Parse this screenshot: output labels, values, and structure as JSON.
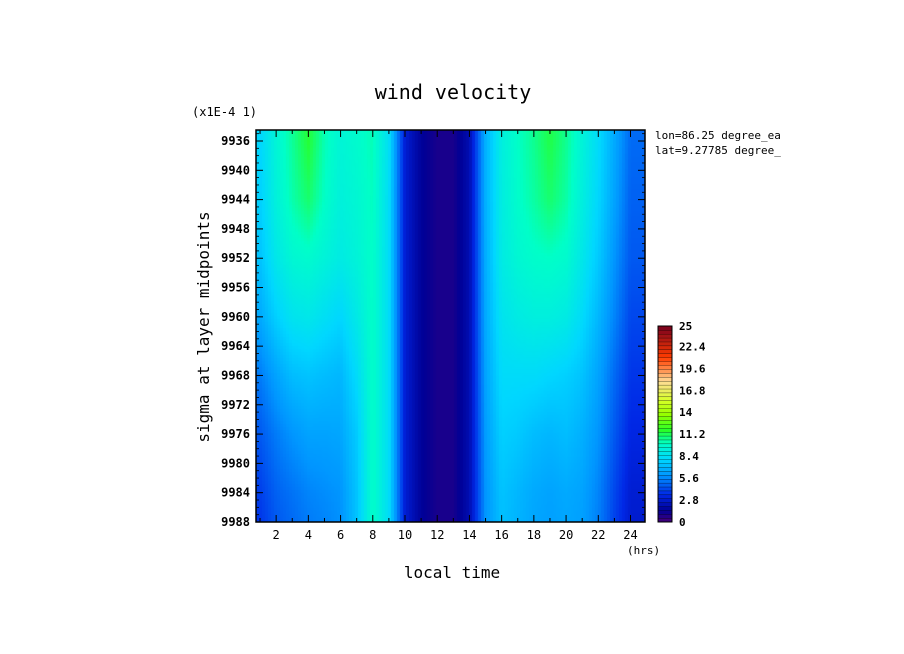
{
  "chart_data": {
    "type": "heatmap",
    "title": "wind velocity",
    "scale_note": "(x1E-4 1)",
    "xlabel": "local time",
    "x_unit": "(hrs)",
    "ylabel": "sigma at layer midpoints",
    "annotations": [
      "lon=86.25 degree_ea",
      "lat=9.27785 degree_"
    ],
    "x_range": [
      0.75,
      24.9
    ],
    "y_range": [
      9934.5,
      9988
    ],
    "y_inverted": true,
    "x_ticks": [
      2,
      4,
      6,
      8,
      10,
      12,
      14,
      16,
      18,
      20,
      22,
      24
    ],
    "y_ticks": [
      9936,
      9940,
      9944,
      9948,
      9952,
      9956,
      9960,
      9964,
      9968,
      9972,
      9976,
      9980,
      9984,
      9988
    ],
    "x_tick_labels": [
      "2",
      "4",
      "6",
      "8",
      "10",
      "12",
      "14",
      "16",
      "18",
      "20",
      "22",
      "24"
    ],
    "y_tick_labels": [
      "9936",
      "9940",
      "9944",
      "9948",
      "9952",
      "9956",
      "9960",
      "9964",
      "9968",
      "9972",
      "9976",
      "9980",
      "9984",
      "9988"
    ],
    "colorbar": {
      "min": 0,
      "max": 25,
      "tick_values": [
        0,
        2.8,
        5.6,
        8.4,
        11.2,
        14,
        16.8,
        19.6,
        22.4,
        25
      ],
      "tick_labels": [
        "0",
        "2.8",
        "5.6",
        "8.4",
        "11.2",
        "14",
        "16.8",
        "19.6",
        "22.4",
        "25"
      ]
    },
    "grid": false,
    "field_x": [
      1,
      2,
      3,
      4,
      5,
      6,
      7,
      8,
      9,
      10,
      11,
      12,
      13,
      14,
      15,
      16,
      17,
      18,
      19,
      20,
      21,
      22,
      23,
      24
    ],
    "field_y": [
      9936,
      9944,
      9952,
      9960,
      9968,
      9976,
      9984,
      9988
    ],
    "values": [
      [
        8.0,
        9.5,
        10.5,
        11.6,
        10.2,
        9.5,
        9.8,
        10.2,
        8.4,
        3.0,
        1.6,
        1.0,
        1.0,
        2.2,
        6.8,
        9.2,
        10.0,
        10.6,
        11.4,
        10.6,
        9.4,
        8.2,
        6.6,
        5.0
      ],
      [
        7.8,
        9.3,
        10.3,
        11.0,
        10.0,
        9.3,
        9.6,
        10.1,
        8.3,
        3.0,
        1.6,
        1.0,
        1.0,
        2.2,
        6.8,
        9.1,
        9.9,
        10.4,
        11.0,
        10.4,
        9.2,
        8.0,
        6.4,
        4.8
      ],
      [
        7.4,
        8.8,
        9.6,
        9.8,
        9.4,
        9.0,
        9.4,
        10.0,
        8.3,
        3.0,
        1.6,
        1.0,
        1.0,
        2.2,
        6.7,
        9.0,
        9.6,
        9.9,
        10.0,
        9.8,
        8.8,
        7.6,
        6.0,
        4.6
      ],
      [
        6.6,
        7.8,
        8.6,
        8.8,
        8.4,
        8.0,
        8.9,
        10.0,
        8.3,
        3.0,
        1.6,
        1.0,
        1.0,
        2.2,
        6.6,
        8.6,
        9.0,
        9.2,
        9.2,
        9.0,
        8.2,
        7.0,
        5.6,
        4.2
      ],
      [
        5.4,
        6.4,
        7.2,
        7.4,
        7.2,
        7.0,
        8.2,
        10.0,
        8.3,
        3.0,
        1.6,
        1.0,
        1.0,
        2.2,
        6.4,
        8.2,
        8.2,
        8.2,
        8.0,
        7.8,
        7.4,
        6.4,
        5.0,
        3.8
      ],
      [
        4.6,
        5.4,
        6.0,
        6.4,
        6.4,
        6.5,
        7.6,
        10.0,
        8.3,
        3.0,
        1.6,
        1.0,
        1.0,
        2.2,
        6.2,
        7.8,
        7.6,
        7.2,
        7.0,
        7.2,
        6.8,
        6.0,
        4.6,
        3.4
      ],
      [
        4.0,
        4.8,
        5.2,
        5.6,
        5.8,
        6.0,
        7.4,
        10.0,
        8.3,
        3.0,
        1.6,
        1.0,
        1.0,
        2.2,
        6.0,
        7.4,
        7.0,
        6.6,
        6.4,
        6.6,
        6.4,
        5.6,
        4.2,
        3.0
      ],
      [
        3.8,
        4.6,
        5.0,
        5.4,
        5.6,
        5.9,
        7.4,
        10.0,
        8.3,
        3.0,
        1.6,
        1.0,
        1.0,
        2.2,
        6.0,
        7.3,
        6.9,
        6.5,
        6.3,
        6.5,
        6.3,
        5.5,
        4.1,
        2.9
      ]
    ]
  }
}
